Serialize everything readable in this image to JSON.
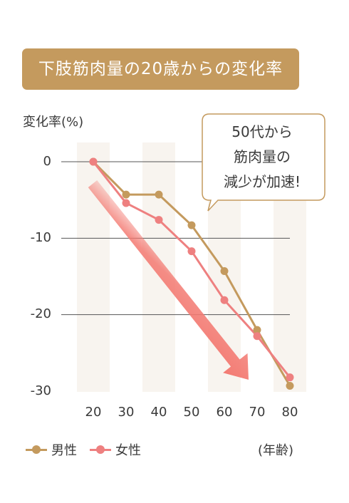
{
  "title": "下肢筋肉量の20歳からの変化率",
  "colors": {
    "male": "#c49a5e",
    "female": "#ee8080",
    "band": "#f8f4ef",
    "arrow": "#f37a72"
  },
  "chart_data": {
    "type": "line",
    "ylabel": "変化率(%)",
    "xlabel": "(年齢)",
    "x": [
      20,
      30,
      40,
      50,
      60,
      70,
      80
    ],
    "xticks": [
      "20",
      "30",
      "40",
      "50",
      "60",
      "70",
      "80"
    ],
    "yticks": [
      "0",
      "-10",
      "-20",
      "-30"
    ],
    "ylim": [
      -30,
      0
    ],
    "grid": true,
    "legend_position": "bottom-left",
    "series": [
      {
        "name": "男性",
        "color": "#c49a5e",
        "values": [
          0,
          -4.3,
          -4.3,
          -8.3,
          -14.3,
          -22.0,
          -29.3
        ]
      },
      {
        "name": "女性",
        "color": "#ee8080",
        "values": [
          0,
          -5.4,
          -7.6,
          -11.7,
          -18.1,
          -22.8,
          -28.2
        ]
      }
    ],
    "annotation": [
      "50代から",
      "筋肉量の",
      "減少が加速!"
    ]
  }
}
